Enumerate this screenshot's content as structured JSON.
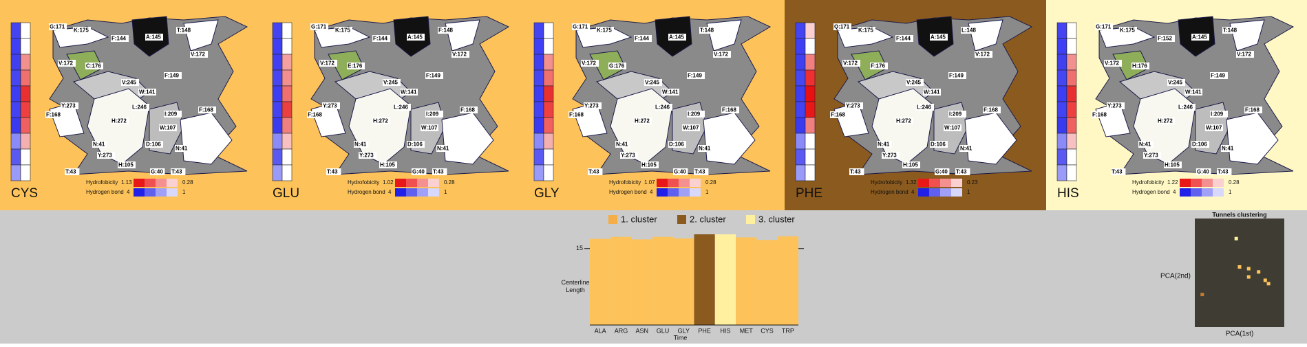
{
  "panels": [
    {
      "name": "CYS",
      "background": "#fdc35a",
      "strip_left": [
        "#4444f2",
        "#3f3ff5",
        "#4040f0",
        "#4646f2",
        "#3d3df3",
        "#4343f4",
        "#3a3af0",
        "#8a8af8",
        "#5a5af3",
        "#9a9af8"
      ],
      "strip_right": [
        "#ffffff",
        "#ffffff",
        "#f29090",
        "#f07070",
        "#e83030",
        "#ee4040",
        "#f06060",
        "#f4b0b0",
        "#ffffff",
        "#ffffff"
      ],
      "labels": [
        "G:171",
        "K:175",
        "F:144",
        "A:145",
        "T:148",
        "V:172",
        "V:172",
        "C:176",
        "V:245",
        "F:149",
        "W:141",
        "L:246",
        "Y:273",
        "F:168",
        "H:272",
        "I:209",
        "F:168",
        "W:107",
        "D:106",
        "N:41",
        "N:41",
        "Y:273",
        "H:105",
        "T:43",
        "G:40",
        "T:43"
      ],
      "hydrofobicity_label": "Hydrofobicity",
      "hydrofobicity_max": "1.13",
      "hydrofobicity_min": "0.28",
      "hbond_label": "Hydrogen bond",
      "hbond_max": "4",
      "hbond_min": "1"
    },
    {
      "name": "GLU",
      "background": "#fdc35a",
      "strip_left": [
        "#4444f2",
        "#3f3ff5",
        "#4040f0",
        "#4646f2",
        "#3d3df3",
        "#4343f4",
        "#3a3af0",
        "#8a8af8",
        "#5a5af3",
        "#9a9af8"
      ],
      "strip_right": [
        "#ffffff",
        "#ffffff",
        "#f4a0a0",
        "#f29090",
        "#f07070",
        "#ea4040",
        "#f08080",
        "#f8c0c0",
        "#ffffff",
        "#ffffff"
      ],
      "labels": [
        "G:171",
        "K:175",
        "F:144",
        "A:145",
        "F:148",
        "V:172",
        "V:172",
        "E:176",
        "V:245",
        "F:149",
        "W:141",
        "L:246",
        "Y:273",
        "F:168",
        "H:272",
        "I:209",
        "F:168",
        "W:107",
        "D:106",
        "N:41",
        "N:41",
        "Y:273",
        "H:105",
        "T:43",
        "G:40",
        "T:43"
      ],
      "hydrofobicity_label": "Hydrofobicity",
      "hydrofobicity_max": "1.02",
      "hydrofobicity_min": "0.28",
      "hbond_label": "Hydrogen bond",
      "hbond_max": "4",
      "hbond_min": "1"
    },
    {
      "name": "GLY",
      "background": "#fdc35a",
      "strip_left": [
        "#4444f2",
        "#3f3ff5",
        "#4040f0",
        "#4646f2",
        "#3d3df3",
        "#4343f4",
        "#3a3af0",
        "#8a8af8",
        "#5a5af3",
        "#9a9af8"
      ],
      "strip_right": [
        "#ffffff",
        "#ffffff",
        "#f29090",
        "#f07070",
        "#e83030",
        "#ee4040",
        "#f06060",
        "#f4b0b0",
        "#ffffff",
        "#ffffff"
      ],
      "labels": [
        "G:171",
        "K:175",
        "F:144",
        "A:145",
        "T:148",
        "V:172",
        "V:172",
        "G:176",
        "V:245",
        "F:149",
        "W:141",
        "L:246",
        "Y:273",
        "F:168",
        "H:272",
        "I:209",
        "F:168",
        "W:107",
        "D:106",
        "N:41",
        "N:41",
        "Y:273",
        "H:105",
        "T:43",
        "G:40",
        "T:43"
      ],
      "hydrofobicity_label": "Hydrofobicity",
      "hydrofobicity_max": "1.07",
      "hydrofobicity_min": "0.28",
      "hbond_label": "Hydrogen bond",
      "hbond_max": "4",
      "hbond_min": "1"
    },
    {
      "name": "PHE",
      "background": "#8b5a1e",
      "strip_left": [
        "#4444f2",
        "#3f3ff5",
        "#4040f0",
        "#4646f2",
        "#3d3df3",
        "#4343f4",
        "#3a3af0",
        "#8a8af8",
        "#5a5af3",
        "#9a9af8"
      ],
      "strip_right": [
        "#fbd0d0",
        "#ffffff",
        "#f08080",
        "#ee3030",
        "#e81010",
        "#e81818",
        "#f08080",
        "#ffffff",
        "#ffffff",
        "#ffffff"
      ],
      "labels": [
        "Q:171",
        "K:175",
        "F:144",
        "A:145",
        "L:148",
        "V:172",
        "V:172",
        "F:176",
        "V:245",
        "F:149",
        "W:141",
        "L:246",
        "Y:273",
        "F:168",
        "H:272",
        "I:209",
        "F:168",
        "W:107",
        "D:106",
        "N:41",
        "N:41",
        "Y:273",
        "H:105",
        "T:43",
        "G:40",
        "T:43"
      ],
      "hydrofobicity_label": "Hydrofobicity",
      "hydrofobicity_max": "1.32",
      "hydrofobicity_min": "0.23",
      "hbond_label": "Hydrogen bond",
      "hbond_max": "4",
      "hbond_min": "1"
    },
    {
      "name": "HIS",
      "background": "#fff8c4",
      "strip_left": [
        "#4444f2",
        "#3f3ff5",
        "#4040f0",
        "#4646f2",
        "#3d3df3",
        "#4343f4",
        "#3a3af0",
        "#8a8af8",
        "#5a5af3",
        "#9a9af8"
      ],
      "strip_right": [
        "#ffffff",
        "#ffffff",
        "#f29090",
        "#f07070",
        "#e83030",
        "#ee4040",
        "#f06060",
        "#f8c0c0",
        "#ffffff",
        "#ffffff"
      ],
      "labels": [
        "G:171",
        "K:175",
        "F:152",
        "A:145",
        "T:148",
        "V:172",
        "V:172",
        "H:176",
        "V:245",
        "F:149",
        "W:141",
        "L:246",
        "Y:273",
        "F:168",
        "H:272",
        "I:209",
        "F:168",
        "W:107",
        "D:106",
        "N:41",
        "N:41",
        "Y:273",
        "H:105",
        "T:43",
        "G:40",
        "T:43"
      ],
      "hydrofobicity_label": "Hydrofobicity",
      "hydrofobicity_max": "1.22",
      "hydrofobicity_min": "0.28",
      "hbond_label": "Hydrogen bond",
      "hbond_max": "4",
      "hbond_min": "1"
    }
  ],
  "chart_data": [
    {
      "type": "bar",
      "ylabel": "Centerline Length",
      "xlabel": "Time",
      "categories": [
        "ALA",
        "ARG",
        "ASN",
        "GLU",
        "GLY",
        "PHE",
        "HIS",
        "MET",
        "CYS",
        "TRP"
      ],
      "values": [
        16.9,
        17.3,
        16.8,
        17.3,
        17.0,
        17.8,
        17.8,
        17.2,
        16.7,
        17.4
      ],
      "colors": [
        "#fdc35a",
        "#fdc35a",
        "#fdc35a",
        "#fdc35a",
        "#fdc35a",
        "#8b5a1e",
        "#fff0a0",
        "#fdc35a",
        "#fdc35a",
        "#fdc35a"
      ],
      "legend": [
        {
          "name": "1. cluster",
          "color": "#f5ad45"
        },
        {
          "name": "2. cluster",
          "color": "#8b5a1e"
        },
        {
          "name": "3. cluster",
          "color": "#fff0a0"
        }
      ],
      "ylim": [
        0,
        17.8
      ],
      "yticks": [
        15
      ]
    },
    {
      "type": "scatter",
      "title": "Tunnels clustering",
      "xlabel": "PCA(1st)",
      "ylabel": "PCA(2nd)",
      "x": [
        46.3,
        50,
        60.2,
        60.2,
        71.3,
        78.7,
        82.4,
        8.3
      ],
      "y": [
        81.5,
        55.4,
        53.8,
        46.2,
        50.8,
        43.1,
        40,
        30
      ],
      "colors": [
        "#fff0a0",
        "#fdc35a",
        "#fdc35a",
        "#fdc35a",
        "#fdc35a",
        "#fdc35a",
        "#fdc35a",
        "#c87a30"
      ],
      "xlim": [
        0,
        100
      ],
      "ylim": [
        0,
        100
      ],
      "background": "#3f3d33"
    }
  ]
}
